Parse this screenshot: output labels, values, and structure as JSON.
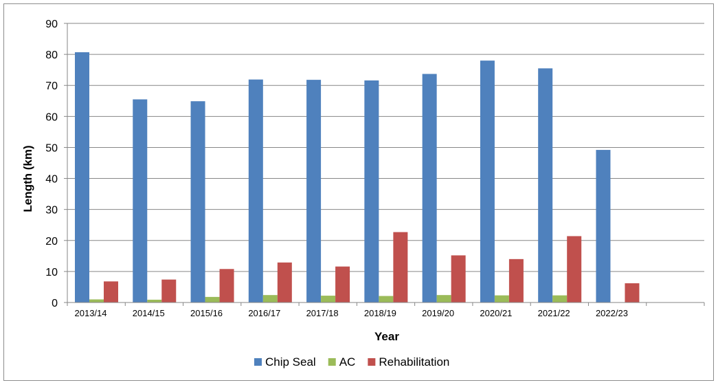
{
  "chart_data": {
    "type": "bar",
    "title": "",
    "xlabel": "Year",
    "ylabel": "Length (km)",
    "ylim": [
      0,
      90
    ],
    "yticks": [
      "0",
      "10",
      "20",
      "30",
      "40",
      "50",
      "60",
      "70",
      "80",
      "90"
    ],
    "grid": true,
    "legend_position": "bottom",
    "categories": [
      "2013/14",
      "2014/15",
      "2015/16",
      "2016/17",
      "2017/18",
      "2018/19",
      "2019/20",
      "2020/21",
      "2021/22",
      "2022/23",
      ""
    ],
    "series": [
      {
        "name": "Chip Seal",
        "color": "#4F81BD",
        "values": [
          80.7,
          65.5,
          64.9,
          71.9,
          71.8,
          71.6,
          73.7,
          78.0,
          75.5,
          49.2,
          null
        ]
      },
      {
        "name": "AC",
        "color": "#9BBB59",
        "values": [
          1.0,
          0.9,
          1.8,
          2.4,
          2.2,
          2.1,
          2.4,
          2.3,
          2.3,
          null,
          null
        ]
      },
      {
        "name": "Rehabilitation",
        "color": "#C0504D",
        "values": [
          6.8,
          7.4,
          10.8,
          12.9,
          11.6,
          22.7,
          15.2,
          14.0,
          21.4,
          6.2,
          null
        ]
      }
    ]
  }
}
